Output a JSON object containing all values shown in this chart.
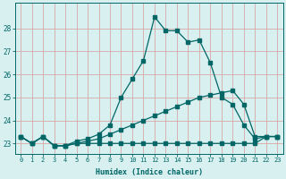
{
  "xlabel": "Humidex (Indice chaleur)",
  "bg_color": "#d8f0f0",
  "line_color": "#006666",
  "grid_color": "#d8a8a8",
  "hours": [
    0,
    1,
    2,
    3,
    4,
    5,
    6,
    7,
    8,
    9,
    10,
    11,
    12,
    13,
    14,
    15,
    16,
    17,
    18,
    19,
    20,
    21,
    22,
    23
  ],
  "line_top": [
    23.3,
    23.0,
    23.3,
    22.9,
    22.9,
    23.1,
    23.2,
    23.4,
    23.8,
    25.0,
    25.8,
    26.6,
    28.5,
    27.9,
    27.9,
    27.4,
    27.5,
    26.5,
    25.0,
    24.7,
    23.8,
    23.2,
    23.3,
    23.3
  ],
  "line_mid": [
    23.3,
    23.0,
    23.3,
    22.9,
    22.9,
    23.0,
    23.1,
    23.2,
    23.4,
    23.6,
    23.8,
    24.0,
    24.2,
    24.4,
    24.6,
    24.8,
    25.0,
    25.1,
    25.2,
    25.3,
    24.7,
    23.3,
    23.3,
    23.3
  ],
  "line_bot": [
    23.3,
    23.0,
    23.3,
    22.9,
    22.9,
    23.0,
    23.0,
    23.0,
    23.0,
    23.0,
    23.0,
    23.0,
    23.0,
    23.0,
    23.0,
    23.0,
    23.0,
    23.0,
    23.0,
    23.0,
    23.0,
    23.0,
    23.3,
    23.3
  ],
  "ylim": [
    22.55,
    29.1
  ],
  "yticks": [
    23,
    24,
    25,
    26,
    27,
    28
  ],
  "figsize": [
    3.2,
    2.0
  ],
  "dpi": 100
}
